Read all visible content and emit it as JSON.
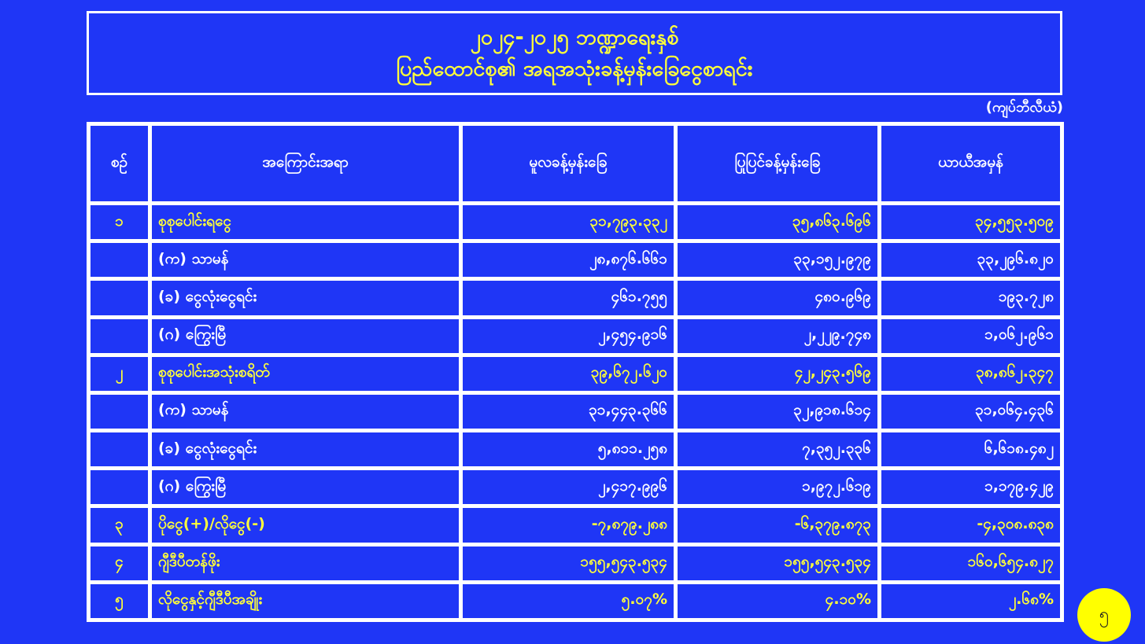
{
  "title": {
    "line1": "၂၀၂၄-၂၀၂၅ ဘဏ္ဍာရေးနှစ်",
    "line2": "ပြည်ထောင်စု၏ အရအသုံးခန့်မှန်းခြေငွေစာရင်း"
  },
  "unit": "(ကျပ်ဘီလီယံ)",
  "headers": [
    "စဉ်",
    "အကြောင်းအရာ",
    "မူလခန့်မှန်းခြေ",
    "ပြုပြင်ခန့်မှန်းခြေ",
    "ယာယီအမှန်"
  ],
  "rows": [
    {
      "no": "၁",
      "label": "စုစုပေါင်းရငွေ",
      "v": [
        "၃၁,၇၉၃.၃၃၂",
        "၃၅,၈၆၃.၆၉၆",
        "၃၄,၅၅၃.၅၀၉"
      ]
    },
    {
      "no": "",
      "label": "(က) သာမန်",
      "v": [
        "၂၈,၈၇၆.၆၆၁",
        "၃၃,၁၅၂.၉၇၉",
        "၃၃,၂၉၆.၈၂၀"
      ]
    },
    {
      "no": "",
      "label": "(ခ)  ငွေလုံးငွေရင်း",
      "v": [
        "၄၆၁.၇၅၅",
        "၄၈၀.၉၆၉",
        "၁၉၃.၇၂၈"
      ]
    },
    {
      "no": "",
      "label": "(ဂ)  ကြွေးမြီ",
      "v": [
        "၂,၄၅၄.၉၁၆",
        "၂,၂၂၉.၇၄၈",
        "၁,၀၆၂.၉၆၁"
      ]
    },
    {
      "no": "၂",
      "label": "စုစုပေါင်းအသုံးစရိတ်",
      "v": [
        "၃၉,၆၇၂.၆၂၀",
        "၄၂,၂၄၃.၅၆၉",
        "၃၈,၈၆၂.၃၄၇"
      ]
    },
    {
      "no": "",
      "label": "(က) သာမန်",
      "v": [
        "၃၁,၄၄၃.၃၆၆",
        "၃၂,၉၁၈.၆၁၄",
        "၃၁,၀၆၄.၄၃၆"
      ]
    },
    {
      "no": "",
      "label": "(ခ)  ငွေလုံးငွေရင်း",
      "v": [
        "၅,၈၁၁.၂၅၈",
        "၇,၃၅၂.၃၃၆",
        "၆,၆၁၈.၄၈၂"
      ]
    },
    {
      "no": "",
      "label": "(ဂ)  ကြွေးမြီ",
      "v": [
        "၂,၄၁၇.၉၉၆",
        "၁,၉၇၂.၆၁၉",
        "၁,၁၇၉.၄၂၉"
      ]
    },
    {
      "no": "၃",
      "label": "ပိုငွေ(+)/လိုငွေ(-)",
      "v": [
        "-၇,၈၇၉.၂၈၈",
        "-၆,၃၇၉.၈၇၃",
        "-၄,၃၀၈.၈၃၈"
      ]
    },
    {
      "no": "၄",
      "label": "ဂျီဒီပီတန်ဖိုး",
      "v": [
        "၁၅၅,၅၄၃.၅၃၄",
        "၁၅၅,၅၄၃.၅၃၄",
        "၁၆၀,၆၅၄.၈၂၇"
      ]
    },
    {
      "no": "၅",
      "label": "လိုငွေနှင့်ဂျီဒီပီအချိုး",
      "v": [
        "၅.၀၇%",
        "၄.၁၀%",
        "၂.၆၈%"
      ]
    }
  ],
  "page_number": "၅",
  "colors": {
    "background": "#1f36f6",
    "highlight_text": "#ffff3a",
    "badge": "#ffff00"
  }
}
